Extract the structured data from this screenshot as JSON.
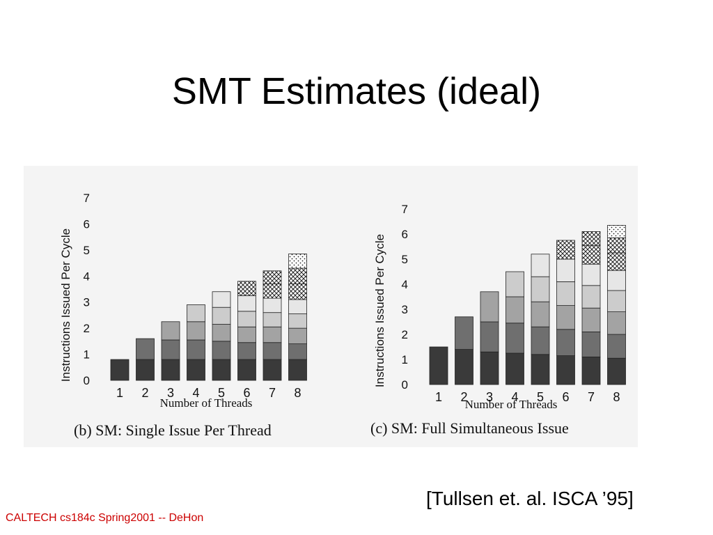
{
  "slide": {
    "title": "SMT Estimates (ideal)",
    "citation": "[Tullsen et. al. ISCA ’95]",
    "footer": "CALTECH cs184c Spring2001 -- DeHon"
  },
  "colors": {
    "footer": "#cc0000",
    "seg1": "#3a3a3a",
    "seg2": "#6f6f6f",
    "seg3": "#a3a3a3",
    "seg4": "#cccccc",
    "seg5": "#e6e6e6",
    "hatch": "#ffffff"
  },
  "chart_data": [
    {
      "type": "bar",
      "stacked": true,
      "title": "(b)  SM: Single Issue Per Thread",
      "xlabel": "Number of Threads",
      "ylabel": "Instructions Issued Per Cycle",
      "categories": [
        "1",
        "2",
        "3",
        "4",
        "5",
        "6",
        "7",
        "8"
      ],
      "ylim": [
        0,
        7
      ],
      "yticks": [
        "0",
        "1",
        "2",
        "3",
        "4",
        "5",
        "6",
        "7"
      ],
      "stacks": [
        [
          0.8
        ],
        [
          0.8,
          0.8
        ],
        [
          0.8,
          0.75,
          0.7
        ],
        [
          0.8,
          0.75,
          0.7,
          0.65
        ],
        [
          0.8,
          0.7,
          0.65,
          0.65,
          0.6
        ],
        [
          0.8,
          0.65,
          0.6,
          0.6,
          0.6,
          0.55
        ],
        [
          0.8,
          0.65,
          0.6,
          0.55,
          0.55,
          0.55,
          0.5
        ],
        [
          0.8,
          0.6,
          0.6,
          0.55,
          0.55,
          0.6,
          0.6,
          0.55
        ]
      ]
    },
    {
      "type": "bar",
      "stacked": true,
      "title": "(c)  SM:  Full Simultaneous Issue",
      "xlabel": "Number of Threads",
      "ylabel": "Instructions Issued Per Cycle",
      "categories": [
        "1",
        "2",
        "3",
        "4",
        "5",
        "6",
        "7",
        "8"
      ],
      "ylim": [
        0,
        7
      ],
      "yticks": [
        "0",
        "1",
        "2",
        "3",
        "4",
        "5",
        "6",
        "7"
      ],
      "stacks": [
        [
          1.5
        ],
        [
          1.4,
          1.3
        ],
        [
          1.3,
          1.2,
          1.2
        ],
        [
          1.25,
          1.2,
          1.05,
          1.0
        ],
        [
          1.2,
          1.1,
          1.0,
          1.0,
          0.9
        ],
        [
          1.15,
          1.05,
          0.95,
          0.95,
          0.9,
          0.75
        ],
        [
          1.1,
          1.0,
          0.95,
          0.9,
          0.85,
          0.75,
          0.55
        ],
        [
          1.05,
          0.95,
          0.9,
          0.85,
          0.8,
          0.7,
          0.6,
          0.5
        ]
      ]
    }
  ]
}
